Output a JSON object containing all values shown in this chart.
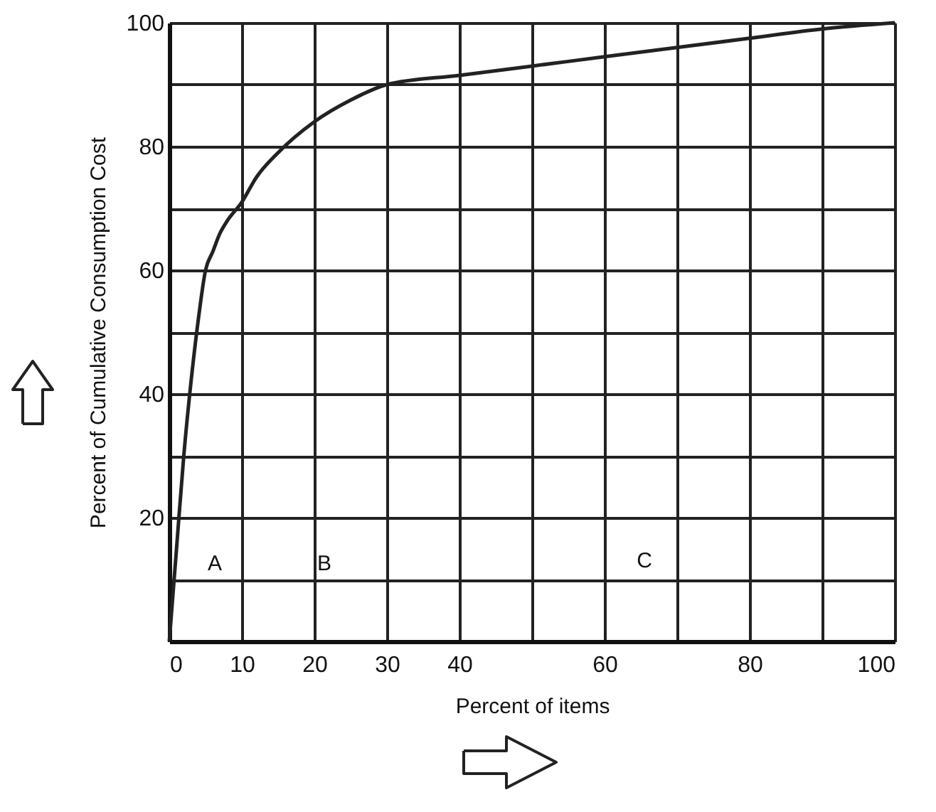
{
  "chart_data": {
    "type": "line",
    "xlabel": "Percent of items",
    "ylabel": "Percent of Cumulative Consumption Cost",
    "x": [
      0,
      1,
      2,
      3,
      4,
      5,
      6,
      7,
      8,
      10,
      12,
      15,
      20,
      25,
      30,
      40,
      50,
      60,
      70,
      80,
      90,
      100
    ],
    "series": [
      {
        "color": "#222222",
        "values": [
          0,
          15,
          30,
          42,
          52,
          60,
          63,
          66,
          68,
          71,
          75,
          79,
          84,
          87.5,
          90,
          91.5,
          93,
          94.5,
          96,
          97.5,
          99,
          100
        ]
      }
    ],
    "xlim": [
      0,
      100
    ],
    "ylim": [
      0,
      100
    ],
    "xticks": [
      0,
      10,
      20,
      30,
      40,
      {
        "value": 50,
        "label": null
      },
      60,
      {
        "value": 70,
        "label": null
      },
      80,
      {
        "value": 90,
        "label": null
      },
      100
    ],
    "yticks": [
      {
        "value": 10,
        "label": null
      },
      20,
      {
        "value": 30,
        "label": null
      },
      40,
      {
        "value": 50,
        "label": null
      },
      60,
      {
        "value": 70,
        "label": null
      },
      80,
      {
        "value": 90,
        "label": null
      },
      100
    ],
    "annotations": [
      "A",
      "B",
      "C"
    ],
    "grid": true,
    "line_style": "solid",
    "marker": "none"
  }
}
